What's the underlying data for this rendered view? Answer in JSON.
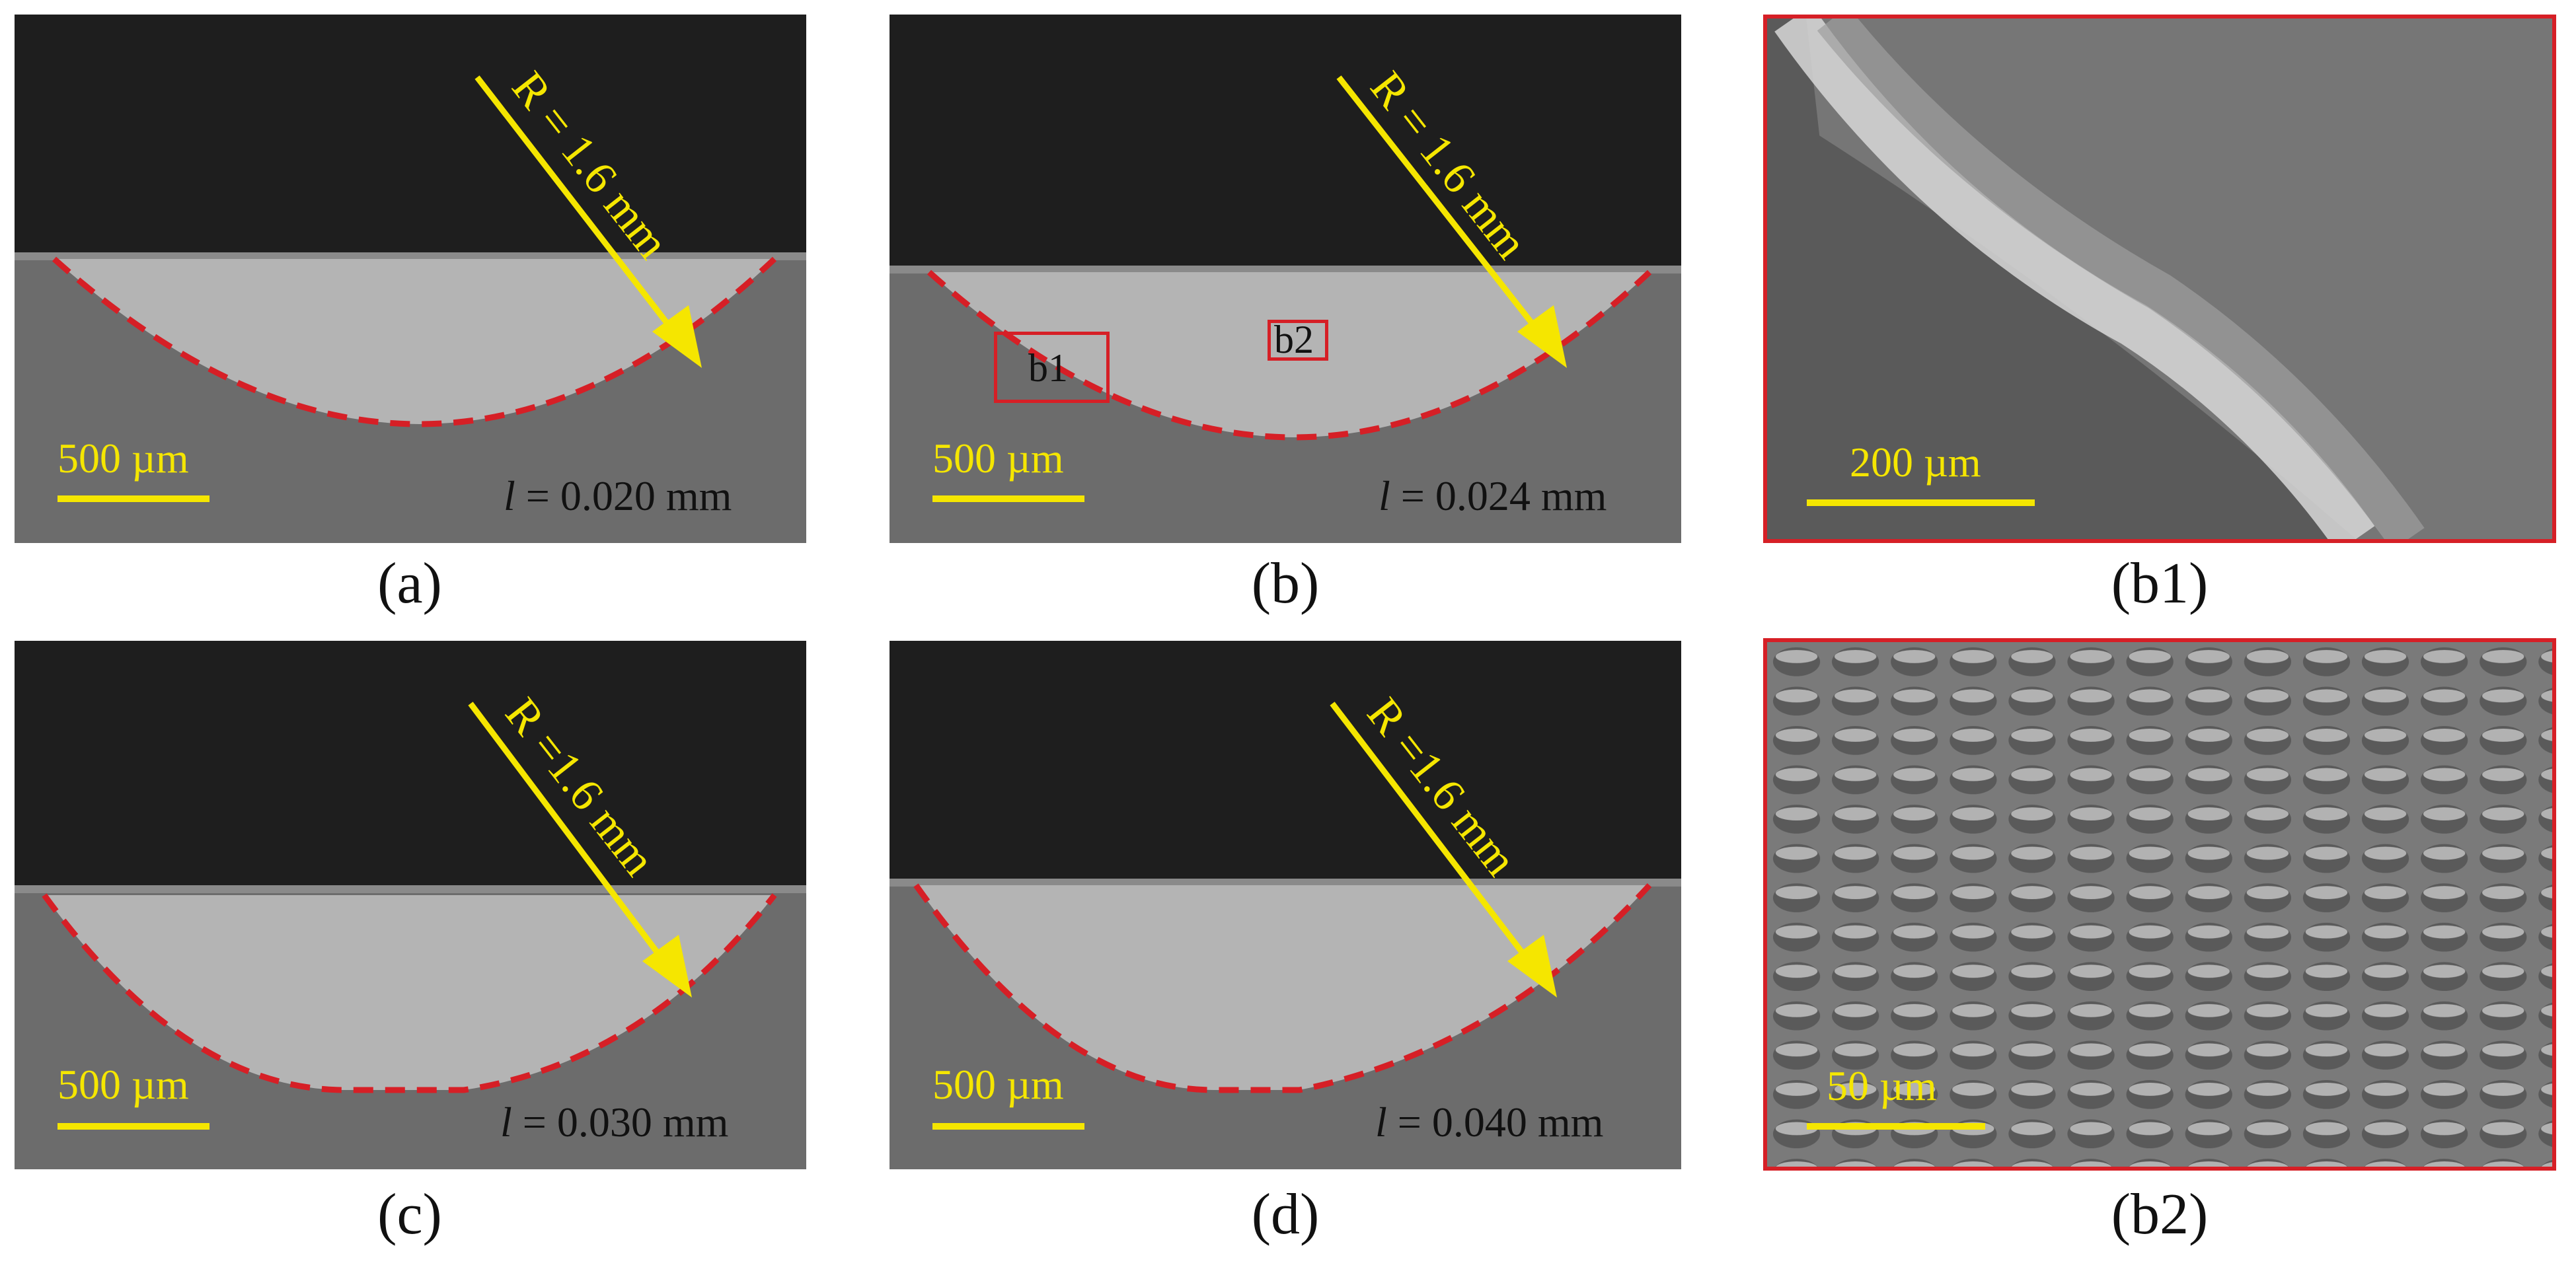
{
  "panels": {
    "a": {
      "caption": "(a)",
      "radius_text": "R = 1.6 mm",
      "scalebar_text": "500 µm",
      "l_prefix": "l",
      "l_value": "= 0.020 mm"
    },
    "b": {
      "caption": "(b)",
      "radius_text": "R = 1.6 mm",
      "scalebar_text": "500 µm",
      "l_prefix": "l",
      "l_value": "= 0.024 mm",
      "roi1": "b1",
      "roi2": "b2"
    },
    "b1": {
      "caption": "(b1)",
      "scalebar_text": "200 µm"
    },
    "c": {
      "caption": "(c)",
      "radius_text": "R =1.6 mm",
      "scalebar_text": "500 µm",
      "l_prefix": "l",
      "l_value": "= 0.030 mm"
    },
    "d": {
      "caption": "(d)",
      "radius_text": "R =1.6 mm",
      "scalebar_text": "500 µm",
      "l_prefix": "l",
      "l_value": "= 0.040 mm"
    },
    "b2": {
      "caption": "(b2)",
      "scalebar_text": "50 µm"
    }
  },
  "colors": {
    "annotation_yellow": "#f5e600",
    "boundary_red": "#d61f26",
    "sem_dark": "#1e1e1e",
    "sem_gray": "#6b6b6b"
  }
}
